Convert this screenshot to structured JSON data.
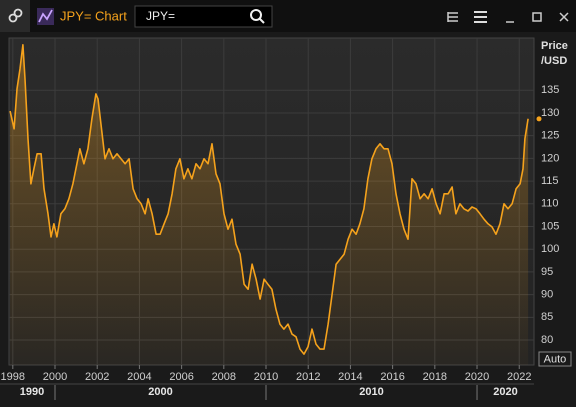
{
  "toolbar": {
    "title": "JPY= Chart",
    "search": "JPY="
  },
  "auto_button": "Auto",
  "chart_data": {
    "type": "line",
    "y_label": [
      "Price",
      "/USD"
    ],
    "series": [
      {
        "name": "JPY=",
        "color": "#f5a21c",
        "x": [
          1997.87,
          1998.06,
          1998.2,
          1998.34,
          1998.48,
          1998.58,
          1998.72,
          1998.86,
          1999.0,
          1999.15,
          1999.34,
          1999.48,
          1999.67,
          1999.81,
          1999.95,
          2000.09,
          2000.28,
          2000.47,
          2000.66,
          2000.85,
          2001.04,
          2001.18,
          2001.37,
          2001.56,
          2001.75,
          2001.94,
          2002.04,
          2002.23,
          2002.37,
          2002.56,
          2002.75,
          2002.94,
          2003.13,
          2003.32,
          2003.51,
          2003.7,
          2003.89,
          2004.08,
          2004.27,
          2004.41,
          2004.6,
          2004.79,
          2004.98,
          2005.17,
          2005.36,
          2005.55,
          2005.73,
          2005.92,
          2006.11,
          2006.3,
          2006.49,
          2006.68,
          2006.87,
          2007.06,
          2007.25,
          2007.44,
          2007.63,
          2007.82,
          2008.01,
          2008.2,
          2008.39,
          2008.58,
          2008.77,
          2008.96,
          2009.15,
          2009.34,
          2009.53,
          2009.72,
          2009.91,
          2010.09,
          2010.28,
          2010.47,
          2010.66,
          2010.85,
          2011.04,
          2011.23,
          2011.42,
          2011.61,
          2011.8,
          2011.99,
          2012.18,
          2012.37,
          2012.56,
          2012.75,
          2012.94,
          2013.13,
          2013.32,
          2013.51,
          2013.7,
          2013.89,
          2014.08,
          2014.27,
          2014.45,
          2014.64,
          2014.83,
          2015.02,
          2015.21,
          2015.4,
          2015.59,
          2015.78,
          2015.97,
          2016.16,
          2016.35,
          2016.54,
          2016.73,
          2016.92,
          2017.11,
          2017.3,
          2017.49,
          2017.68,
          2017.87,
          2018.06,
          2018.25,
          2018.44,
          2018.63,
          2018.82,
          2019.0,
          2019.19,
          2019.38,
          2019.57,
          2019.76,
          2019.95,
          2020.14,
          2020.33,
          2020.52,
          2020.71,
          2020.9,
          2021.09,
          2021.28,
          2021.47,
          2021.66,
          2021.85,
          2022.04,
          2022.18,
          2022.27,
          2022.42
        ],
        "values": [
          130.4,
          126.5,
          135.3,
          139.7,
          145.0,
          137.5,
          124.3,
          114.4,
          117.7,
          121.0,
          121.0,
          113.3,
          107.8,
          102.7,
          105.6,
          102.7,
          107.8,
          108.9,
          111.1,
          114.4,
          118.8,
          122.1,
          118.8,
          122.1,
          128.7,
          134.2,
          133.1,
          125.4,
          119.9,
          122.1,
          119.9,
          121.0,
          119.9,
          118.8,
          119.9,
          113.3,
          111.1,
          110.0,
          107.8,
          111.1,
          107.8,
          103.3,
          103.3,
          105.6,
          107.8,
          112.2,
          117.7,
          119.9,
          115.5,
          117.7,
          115.5,
          118.8,
          117.7,
          119.9,
          118.8,
          123.2,
          116.6,
          114.4,
          107.8,
          104.4,
          106.6,
          101.1,
          98.9,
          92.3,
          91.2,
          96.7,
          93.4,
          89.0,
          93.4,
          92.3,
          91.2,
          86.8,
          83.5,
          82.4,
          83.5,
          81.3,
          80.7,
          78.0,
          76.9,
          78.5,
          82.4,
          79.1,
          78.0,
          78.0,
          83.5,
          90.1,
          96.7,
          97.8,
          98.9,
          102.2,
          104.4,
          103.3,
          105.6,
          108.9,
          115.5,
          119.9,
          122.1,
          123.2,
          122.1,
          122.1,
          118.8,
          112.2,
          107.8,
          104.4,
          102.2,
          115.5,
          114.4,
          111.1,
          112.2,
          111.1,
          113.3,
          110.0,
          107.8,
          112.2,
          112.2,
          113.7,
          107.8,
          110.0,
          108.9,
          108.4,
          109.3,
          108.9,
          107.8,
          106.6,
          105.6,
          104.9,
          103.3,
          105.6,
          110.0,
          108.9,
          110.0,
          113.3,
          114.4,
          117.7,
          124.3,
          128.7
        ]
      }
    ],
    "xlim": [
      1997.82,
      2022.7
    ],
    "xticks": [
      1998,
      2000,
      2002,
      2004,
      2006,
      2008,
      2010,
      2012,
      2014,
      2016,
      2018,
      2020,
      2022
    ],
    "decade_labels": [
      1990,
      2000,
      2010,
      2020
    ],
    "ylim": [
      74.5,
      146.5
    ],
    "yticks": [
      80,
      85,
      90,
      95,
      100,
      105,
      110,
      115,
      120,
      125,
      130,
      135
    ],
    "grid": true
  }
}
